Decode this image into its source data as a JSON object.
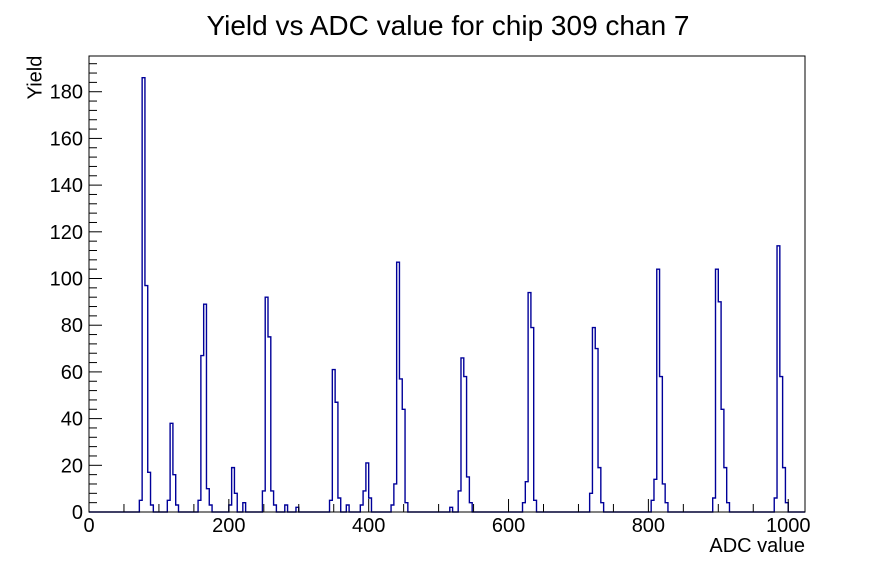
{
  "window": {
    "background": "#ffffff"
  },
  "chart_data": {
    "type": "bar",
    "title": "Yield vs ADC value for chip 309 chan 7",
    "xlabel": "ADC value",
    "ylabel": "Yield",
    "xlim": [
      0,
      1024
    ],
    "ylim": [
      0,
      195.3
    ],
    "x_major_ticks": [
      0,
      200,
      400,
      600,
      800,
      1000
    ],
    "x_minor_step": 50,
    "y_major_ticks": [
      0,
      20,
      40,
      60,
      80,
      100,
      120,
      140,
      160,
      180
    ],
    "y_minor_step": 4,
    "grid": false,
    "legend": false,
    "bin_width": 4,
    "line_color": "#000099",
    "axis_color": "#000000",
    "bins": [
      [
        72,
        5
      ],
      [
        76,
        186
      ],
      [
        80,
        97
      ],
      [
        84,
        17
      ],
      [
        88,
        3
      ],
      [
        112,
        5
      ],
      [
        116,
        38
      ],
      [
        120,
        16
      ],
      [
        124,
        3
      ],
      [
        156,
        5
      ],
      [
        160,
        67
      ],
      [
        164,
        89
      ],
      [
        168,
        10
      ],
      [
        172,
        3
      ],
      [
        200,
        3
      ],
      [
        204,
        19
      ],
      [
        208,
        8
      ],
      [
        220,
        4
      ],
      [
        248,
        9
      ],
      [
        252,
        92
      ],
      [
        256,
        75
      ],
      [
        260,
        9
      ],
      [
        264,
        3
      ],
      [
        280,
        3
      ],
      [
        296,
        2
      ],
      [
        344,
        5
      ],
      [
        348,
        61
      ],
      [
        352,
        47
      ],
      [
        356,
        6
      ],
      [
        368,
        3
      ],
      [
        388,
        3
      ],
      [
        392,
        9
      ],
      [
        396,
        21
      ],
      [
        400,
        6
      ],
      [
        432,
        3
      ],
      [
        436,
        12
      ],
      [
        440,
        107
      ],
      [
        444,
        57
      ],
      [
        448,
        44
      ],
      [
        452,
        4
      ],
      [
        516,
        2
      ],
      [
        528,
        9
      ],
      [
        532,
        66
      ],
      [
        536,
        58
      ],
      [
        540,
        15
      ],
      [
        544,
        4
      ],
      [
        620,
        4
      ],
      [
        624,
        13
      ],
      [
        628,
        94
      ],
      [
        632,
        79
      ],
      [
        636,
        5
      ],
      [
        716,
        8
      ],
      [
        720,
        79
      ],
      [
        724,
        70
      ],
      [
        728,
        19
      ],
      [
        732,
        4
      ],
      [
        804,
        5
      ],
      [
        808,
        14
      ],
      [
        812,
        104
      ],
      [
        816,
        58
      ],
      [
        820,
        12
      ],
      [
        824,
        4
      ],
      [
        892,
        6
      ],
      [
        896,
        104
      ],
      [
        900,
        90
      ],
      [
        904,
        44
      ],
      [
        908,
        19
      ],
      [
        912,
        4
      ],
      [
        980,
        6
      ],
      [
        984,
        114
      ],
      [
        988,
        58
      ],
      [
        992,
        19
      ],
      [
        996,
        4
      ]
    ],
    "peaks": [
      {
        "adc": 78,
        "yield": 186
      },
      {
        "adc": 118,
        "yield": 38
      },
      {
        "adc": 166,
        "yield": 89
      },
      {
        "adc": 206,
        "yield": 19
      },
      {
        "adc": 254,
        "yield": 92
      },
      {
        "adc": 350,
        "yield": 61
      },
      {
        "adc": 398,
        "yield": 21
      },
      {
        "adc": 442,
        "yield": 107
      },
      {
        "adc": 534,
        "yield": 66
      },
      {
        "adc": 630,
        "yield": 94
      },
      {
        "adc": 722,
        "yield": 79
      },
      {
        "adc": 814,
        "yield": 104
      },
      {
        "adc": 898,
        "yield": 104
      },
      {
        "adc": 986,
        "yield": 114
      }
    ]
  }
}
